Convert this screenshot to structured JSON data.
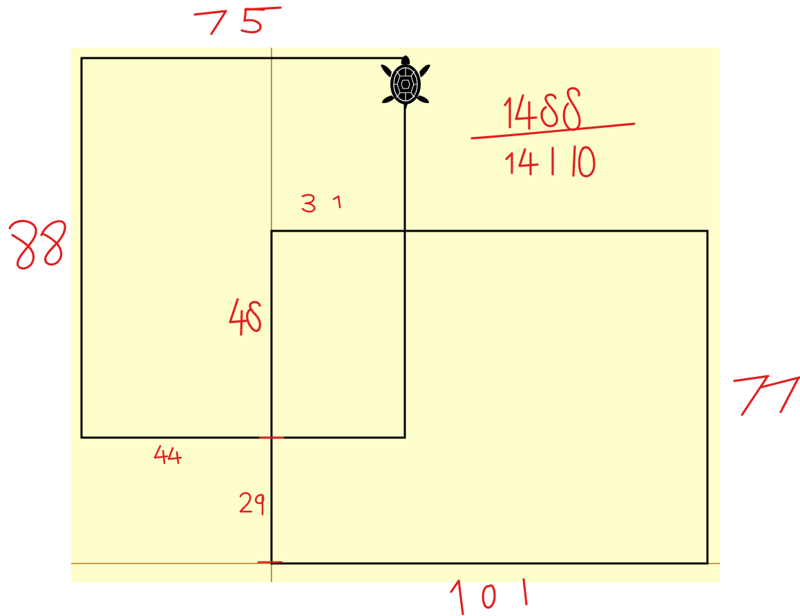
{
  "colors": {
    "canvas": "#fefecc",
    "page": "#ffffff",
    "axis": "#b07a12",
    "drawing": "#000000",
    "annotation": "#e0201f"
  },
  "annotations": {
    "top": "75",
    "left": "88",
    "right": "77",
    "bottom": "101",
    "middle_top": "31",
    "middle_left": "48",
    "lower_left": "44",
    "lower_step": "29",
    "fraction_numerator": "1488",
    "fraction_denominator": "1410"
  },
  "icons": {
    "turtle": "turtle-icon"
  }
}
